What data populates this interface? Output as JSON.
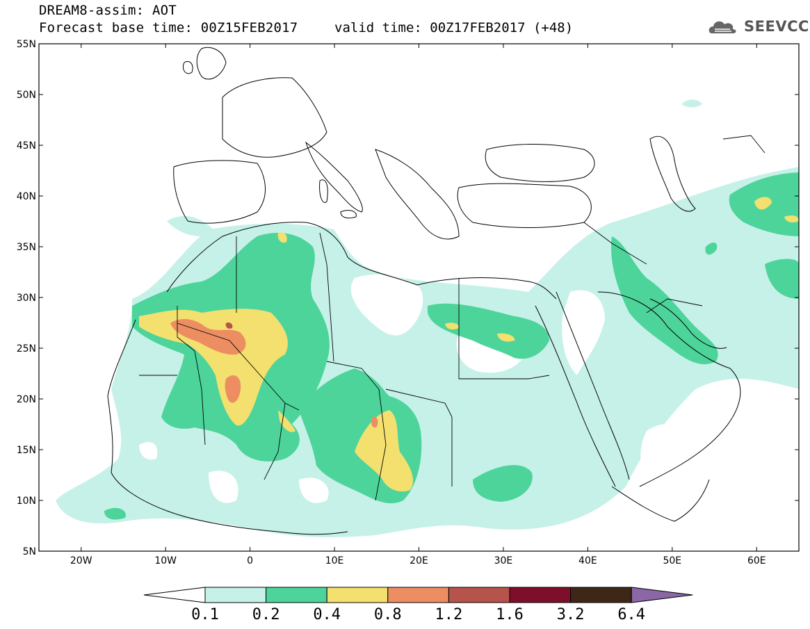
{
  "title": {
    "line1": "DREAM8-assim: AOT",
    "base_time": "Forecast base time: 00Z15FEB2017",
    "valid_time": "valid time: 00Z17FEB2017 (+48)"
  },
  "logo": {
    "text": "SEEVCCC",
    "icon": "cloud-logo-icon"
  },
  "colors": {
    "c01": "#c6f1e8",
    "c02": "#4dd49b",
    "c04": "#f4e06f",
    "c08": "#ec8e62",
    "c12": "#b6534b",
    "c16": "#7e0f2a",
    "c32": "#3e2717",
    "c64": "#8c67a6",
    "land_border": "#000000"
  },
  "axes": {
    "lat_labels": [
      "55N",
      "50N",
      "45N",
      "40N",
      "35N",
      "30N",
      "25N",
      "20N",
      "15N",
      "10N",
      "5N"
    ],
    "lat_values": [
      55,
      50,
      45,
      40,
      35,
      30,
      25,
      20,
      15,
      10,
      5
    ],
    "lon_labels": [
      "20W",
      "10W",
      "0",
      "10E",
      "20E",
      "30E",
      "40E",
      "50E",
      "60E"
    ],
    "lon_values": [
      -20,
      -10,
      0,
      10,
      20,
      30,
      40,
      50,
      60
    ],
    "lon_range": [
      -25,
      65
    ],
    "lat_range": [
      5,
      55
    ]
  },
  "colorbar": {
    "labels": [
      "0.1",
      "0.2",
      "0.4",
      "0.8",
      "1.2",
      "1.6",
      "3.2",
      "6.4"
    ],
    "colors": [
      "#c6f1e8",
      "#4dd49b",
      "#f4e06f",
      "#ec8e62",
      "#b6534b",
      "#7e0f2a",
      "#3e2717"
    ],
    "under_color": "#ffffff",
    "over_color": "#8c67a6"
  }
}
